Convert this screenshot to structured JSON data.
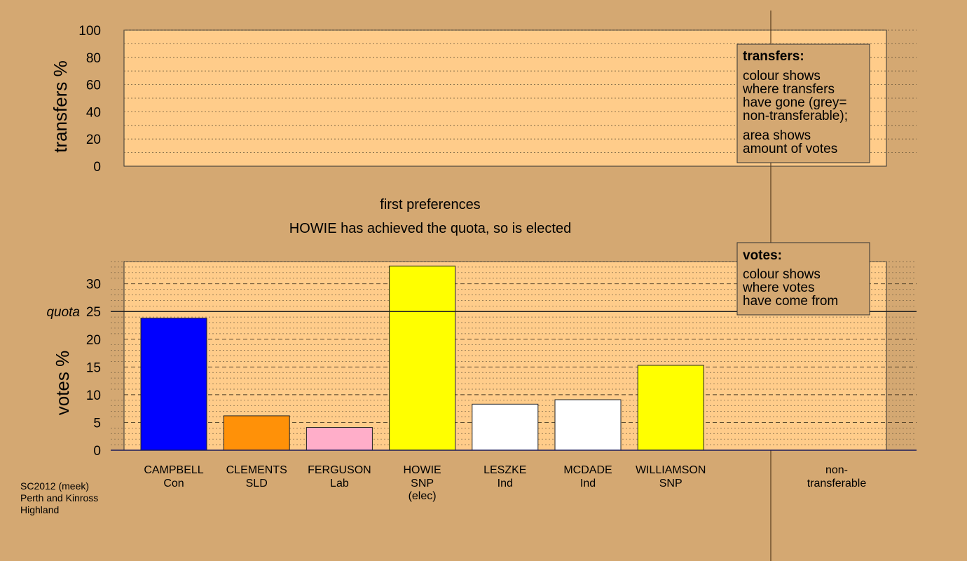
{
  "chart_data": [
    {
      "type": "bar",
      "ylabel": "transfers %",
      "ylim": [
        0,
        100
      ],
      "yticks": [
        0,
        20,
        40,
        60,
        80,
        100
      ],
      "values": []
    },
    {
      "type": "bar",
      "ylabel": "votes %",
      "ylim": [
        0,
        34
      ],
      "yticks": [
        0,
        5,
        10,
        15,
        20,
        25,
        30
      ],
      "quota": {
        "label": "quota",
        "value": 25
      },
      "categories": [
        {
          "name": "CAMPBELL",
          "party": "Con",
          "status": ""
        },
        {
          "name": "CLEMENTS",
          "party": "SLD",
          "status": ""
        },
        {
          "name": "FERGUSON",
          "party": "Lab",
          "status": ""
        },
        {
          "name": "HOWIE",
          "party": "SNP",
          "status": "(elec)"
        },
        {
          "name": "LESZKE",
          "party": "Ind",
          "status": ""
        },
        {
          "name": "MCDADE",
          "party": "Ind",
          "status": ""
        },
        {
          "name": "WILLIAMSON",
          "party": "SNP",
          "status": ""
        }
      ],
      "values": [
        23.8,
        6.2,
        4.1,
        33.2,
        8.3,
        9.1,
        15.3
      ],
      "colors": [
        "#0000ff",
        "#ff9108",
        "#ffaec9",
        "#ffff00",
        "#ffffff",
        "#ffffff",
        "#ffff00"
      ],
      "nontransferable_label": [
        "non-",
        "transferable"
      ]
    }
  ],
  "stage_text": "first preferences",
  "status_text": "HOWIE has achieved the quota, so is elected",
  "legend_transfers": {
    "title": "transfers:",
    "lines": [
      "colour shows",
      "where transfers",
      "have gone (grey=",
      "non-transferable);",
      "area shows",
      "amount of votes"
    ]
  },
  "legend_votes": {
    "title": "votes:",
    "lines": [
      "colour shows",
      "where votes",
      "have come from"
    ]
  },
  "footnote": [
    "SC2012 (meek)",
    "Perth and Kinross",
    "Highland"
  ],
  "colors": {
    "background": "#d4a872",
    "plot_fill": "#ffcc8a"
  }
}
